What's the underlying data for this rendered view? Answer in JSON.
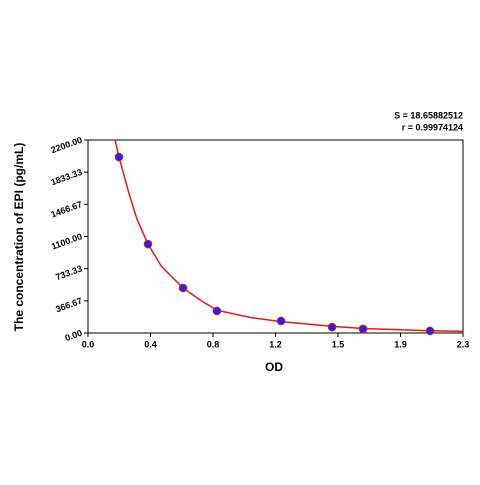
{
  "chart_data": {
    "type": "scatter",
    "xlabel": "OD",
    "ylabel": "The concentration of EPI (pg/mL)",
    "annotations": [
      "S = 18.65882512",
      "r = 0.99974124"
    ],
    "xlim": [
      0,
      2.3
    ],
    "ylim": [
      0,
      2200
    ],
    "xticks": [
      {
        "value": 0,
        "label": "0.0"
      },
      {
        "value": 0.3833,
        "label": "0.4"
      },
      {
        "value": 0.7667,
        "label": "0.8"
      },
      {
        "value": 1.15,
        "label": "1.2"
      },
      {
        "value": 1.5333,
        "label": "1.5"
      },
      {
        "value": 1.9167,
        "label": "1.9"
      },
      2.3
    ],
    "yticks": [
      {
        "value": 0,
        "label": "0.00"
      },
      366.67,
      733.33,
      {
        "value": 1100,
        "label": "1100.00"
      },
      1466.67,
      1833.33,
      {
        "value": 2200,
        "label": "2200.00"
      }
    ],
    "points": {
      "color": "#2222ee",
      "edgecolor": "#dd1111",
      "x": [
        0.19,
        0.368,
        0.583,
        0.791,
        1.184,
        1.497,
        1.687,
        2.098
      ],
      "values": [
        2006,
        1014,
        513,
        251,
        137,
        68,
        46,
        23
      ]
    },
    "curve": {
      "color": "#e31a1a",
      "x": [
        0.166,
        0.19,
        0.25,
        0.3,
        0.368,
        0.45,
        0.583,
        0.7,
        0.791,
        1.0,
        1.184,
        1.5,
        1.7,
        2.1,
        2.3
      ],
      "values": [
        2200,
        2006,
        1600,
        1300,
        1014,
        760,
        513,
        360,
        260,
        175,
        130,
        75,
        50,
        25,
        18
      ]
    }
  }
}
